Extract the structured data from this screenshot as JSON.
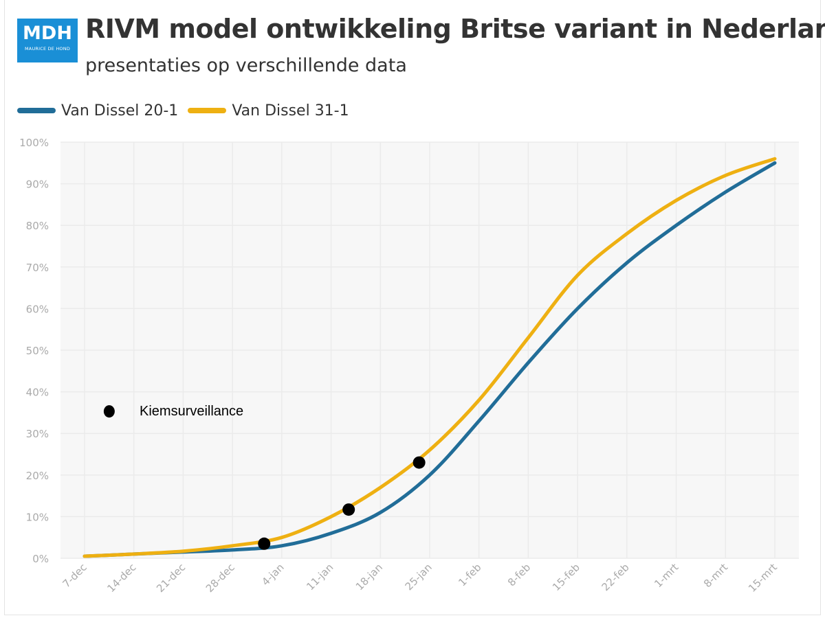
{
  "logo": {
    "main": "MDH",
    "sub": "MAURICE DE HOND"
  },
  "colors": {
    "series1": "#216d98",
    "series2": "#eeb012",
    "marker": "#000000",
    "logo": "#1a8fd6",
    "grid": "#ebebeb",
    "plot_bg": "#f7f7f7",
    "tick": "#aaaaaa"
  },
  "chart_data": {
    "type": "line",
    "title": "RIVM model ontwikkeling Britse variant in Nederland",
    "subtitle": "presentaties op verschillende data",
    "xlabel": "",
    "ylabel": "",
    "x_ticks": [
      "7-dec",
      "14-dec",
      "21-dec",
      "28-dec",
      "4-jan",
      "11-jan",
      "18-jan",
      "25-jan",
      "1-feb",
      "8-feb",
      "15-feb",
      "22-feb",
      "1-mrt",
      "8-mrt",
      "15-mrt"
    ],
    "x_range_days": [
      0,
      98
    ],
    "ylim": [
      0,
      100
    ],
    "y_ticks": [
      0,
      10,
      20,
      30,
      40,
      50,
      60,
      70,
      80,
      90,
      100
    ],
    "y_tick_labels": [
      "0%",
      "10%",
      "20%",
      "30%",
      "40%",
      "50%",
      "60%",
      "70%",
      "80%",
      "90%",
      "100%"
    ],
    "grid": true,
    "legend_position": "top-left",
    "series": [
      {
        "name": "Van Dissel 20-1",
        "x": [
          0,
          7,
          14,
          21,
          28,
          35,
          42,
          49,
          56,
          63,
          70,
          77,
          84,
          91,
          98
        ],
        "values": [
          0.5,
          1,
          1.5,
          2,
          3,
          6,
          11,
          20,
          33,
          47,
          60,
          71,
          80,
          88,
          95
        ]
      },
      {
        "name": "Van Dissel 31-1",
        "x": [
          0,
          7,
          14,
          21,
          28,
          35,
          42,
          49,
          56,
          63,
          70,
          77,
          84,
          91,
          98
        ],
        "values": [
          0.5,
          1,
          1.7,
          3,
          5,
          10,
          17,
          26,
          38,
          53,
          68,
          78,
          86,
          92,
          96
        ]
      }
    ],
    "markers": {
      "name": "Kiemsurveillance",
      "points": [
        {
          "x": 25.5,
          "y": 3.5
        },
        {
          "x": 37.5,
          "y": 11.7
        },
        {
          "x": 47.5,
          "y": 23
        }
      ],
      "legend_point": {
        "x": 3.5,
        "y": 35.3
      }
    }
  }
}
